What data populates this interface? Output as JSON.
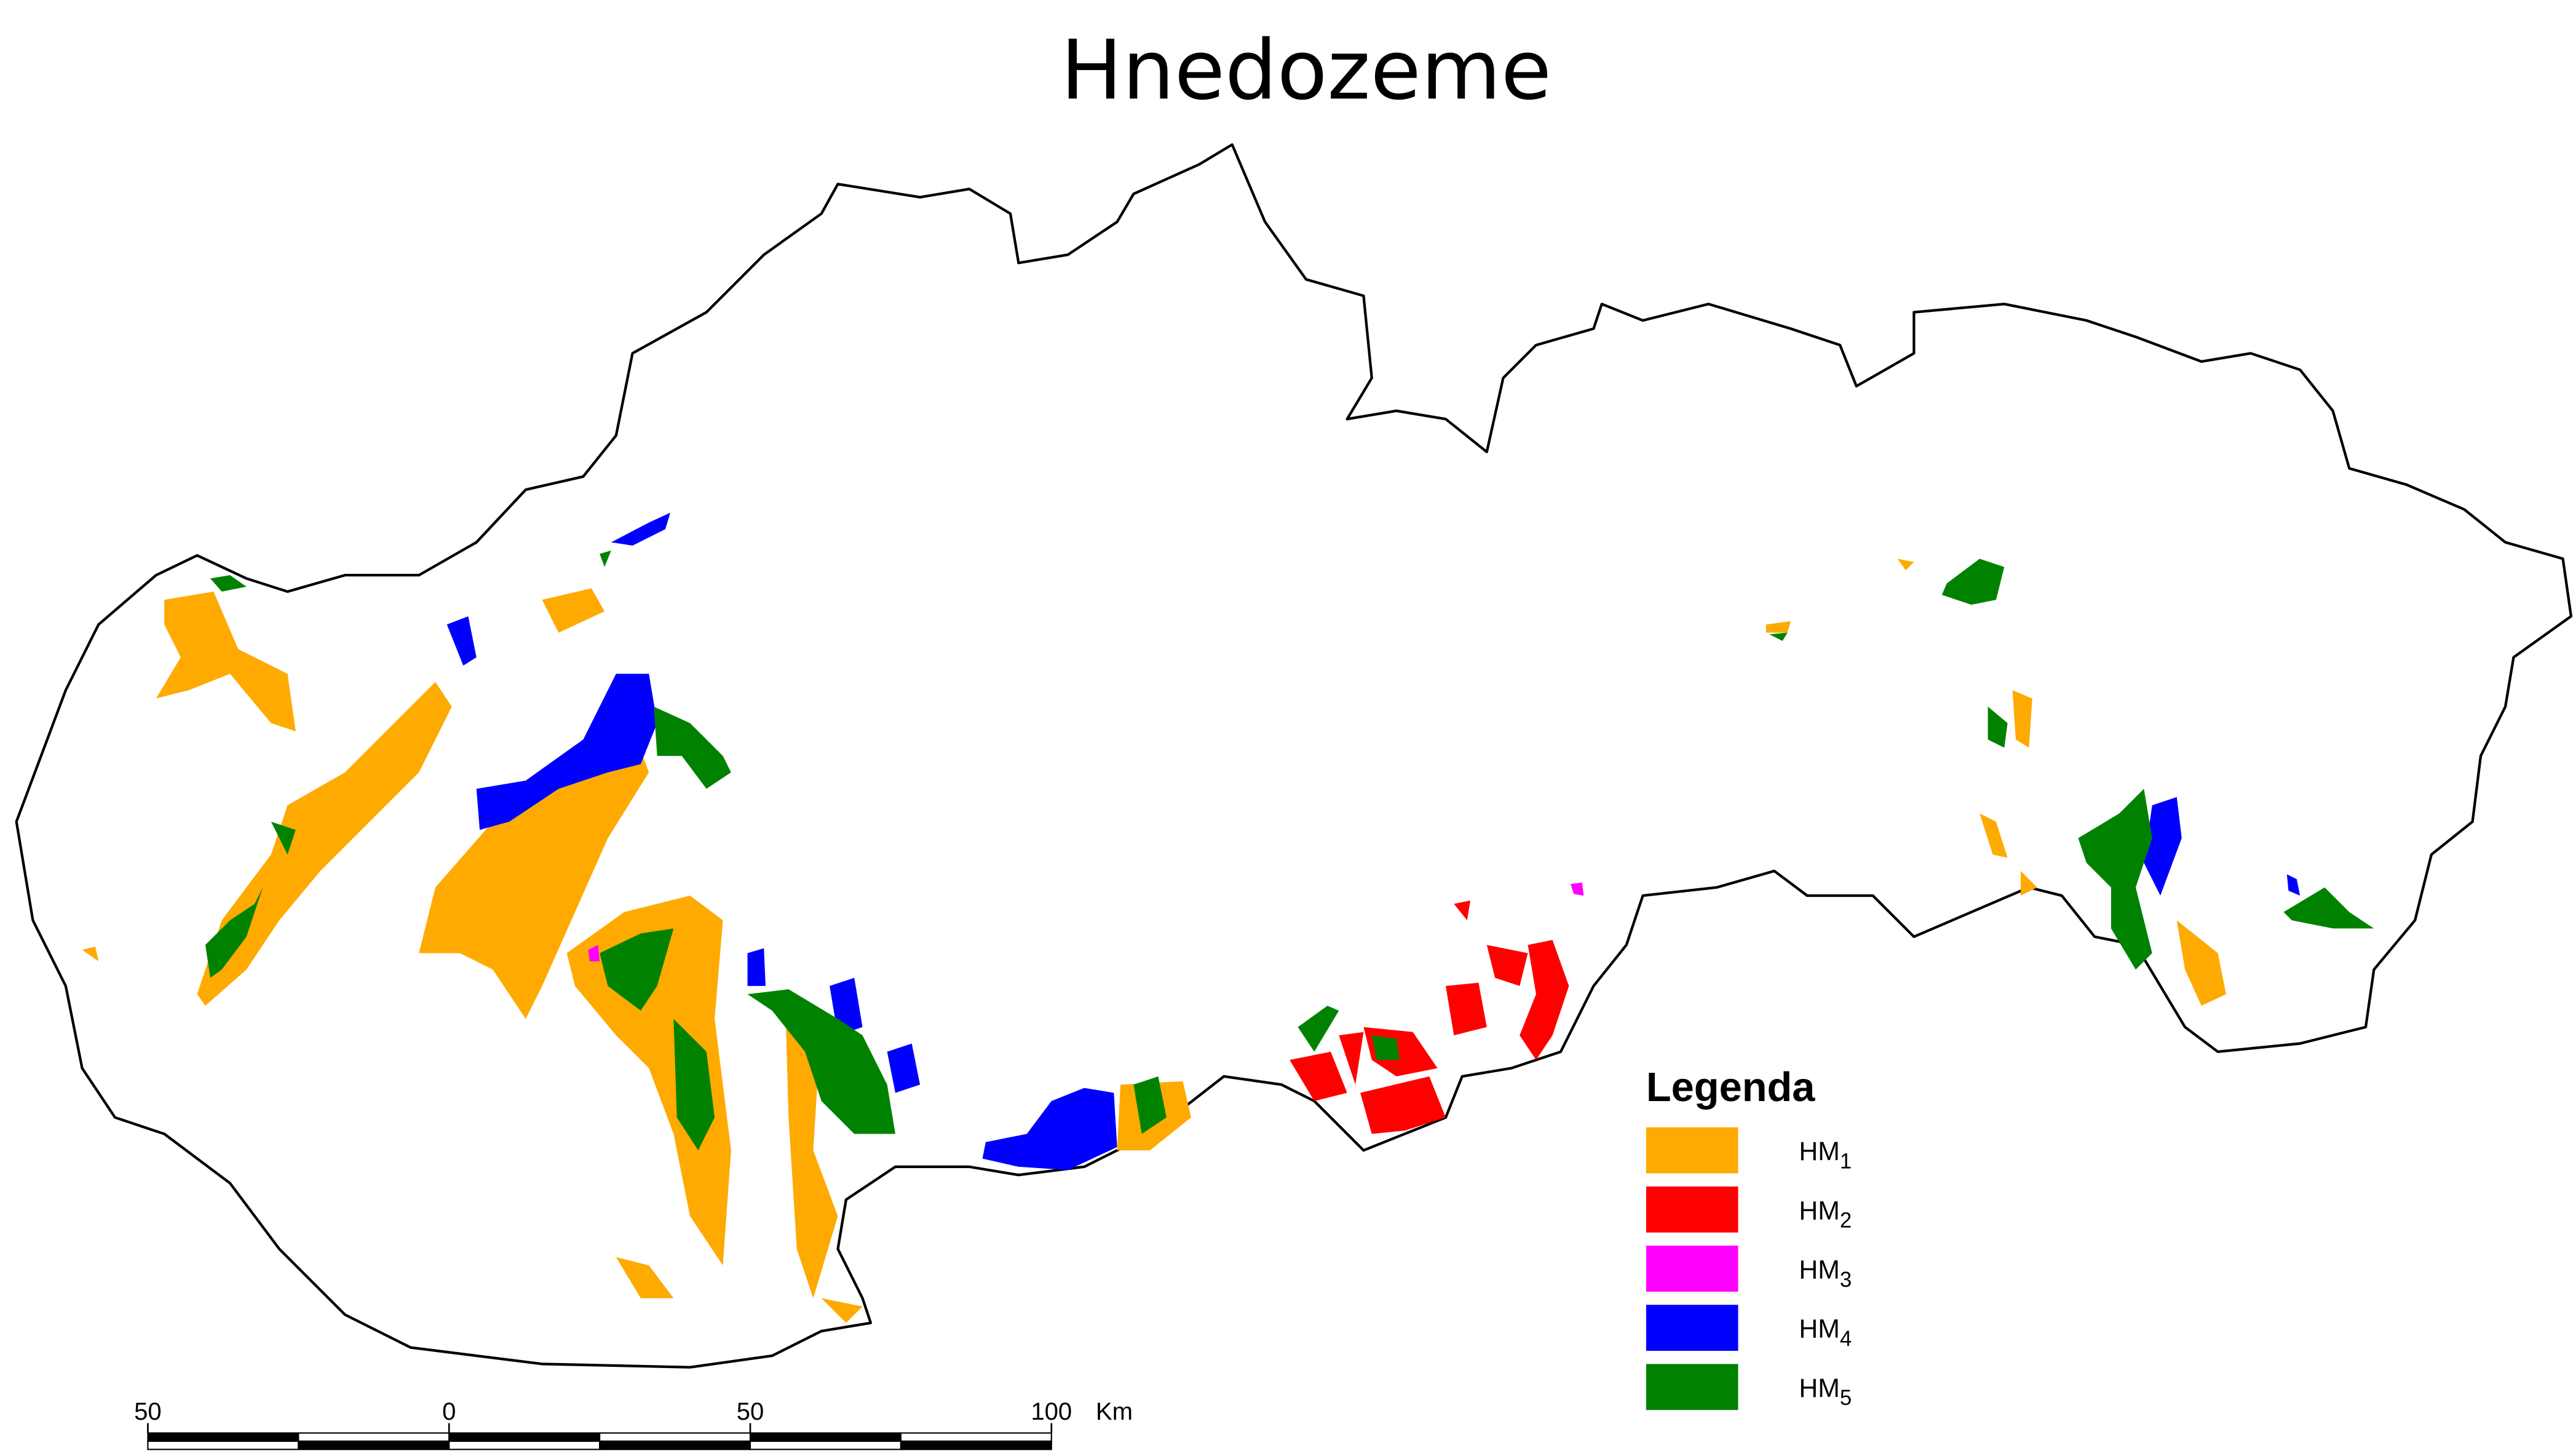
{
  "title": "Hnedozeme",
  "legend": {
    "title": "Legenda",
    "items": [
      {
        "label": "HM",
        "subscript": "1",
        "color": "#ffaa00"
      },
      {
        "label": "HM",
        "subscript": "2",
        "color": "#ff0000"
      },
      {
        "label": "HM",
        "subscript": "3",
        "color": "#ff00ff"
      },
      {
        "label": "HM",
        "subscript": "4",
        "color": "#0000ff"
      },
      {
        "label": "HM",
        "subscript": "5",
        "color": "#008200"
      }
    ]
  },
  "scale_bar": {
    "labels": [
      "50",
      "0",
      "50",
      "100"
    ],
    "unit": "Km"
  }
}
